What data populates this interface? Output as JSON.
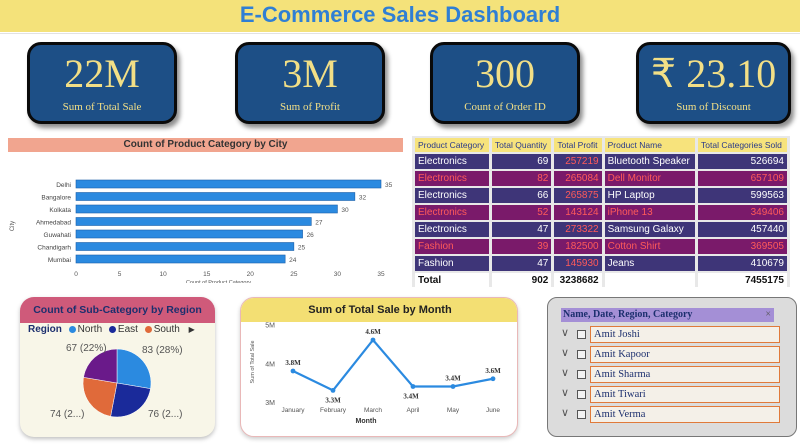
{
  "header": {
    "title": "E-Commerce Sales Dashboard"
  },
  "kpis": [
    {
      "value": "22M",
      "label": "Sum of Total Sale"
    },
    {
      "value": "3M",
      "label": "Sum of Profit"
    },
    {
      "value": "300",
      "label": "Count of Order ID"
    },
    {
      "value": "₹ 23.10",
      "label": "Sum of Discount"
    }
  ],
  "chart_data": [
    {
      "type": "bar",
      "orientation": "horizontal",
      "title": "Count of Product Category by City",
      "xlabel": "Count of Product Category",
      "ylabel": "City",
      "categories": [
        "Delhi",
        "Bangalore",
        "Kolkata",
        "Ahmedabad",
        "Guwahati",
        "Chandigarh",
        "Mumbai"
      ],
      "values": [
        35,
        32,
        30,
        27,
        26,
        25,
        24
      ],
      "xlim": [
        0,
        35
      ],
      "xticks": [
        0,
        5,
        10,
        15,
        20,
        25,
        30,
        35
      ],
      "bar_color": "#2b8ae0"
    },
    {
      "type": "pie",
      "title": "Count of Sub-Category by Region",
      "legend_title": "Region",
      "slices": [
        {
          "name": "North",
          "value": 83,
          "label": "83 (28%)",
          "color": "#2b8ae0"
        },
        {
          "name": "East",
          "value": 76,
          "label": "76 (2...)",
          "color": "#1a2a9a"
        },
        {
          "name": "South",
          "value": 74,
          "label": "74 (2...)",
          "color": "#e06a3a"
        },
        {
          "name": "",
          "value": 67,
          "label": "67 (22%)",
          "color": "#6a1a8a"
        }
      ]
    },
    {
      "type": "line",
      "title": "Sum of Total Sale by Month",
      "xlabel": "Month",
      "ylabel": "Sum of Total Sale",
      "categories": [
        "January",
        "February",
        "March",
        "April",
        "May",
        "June"
      ],
      "values": [
        3.8,
        3.3,
        4.6,
        3.4,
        3.4,
        3.6
      ],
      "data_labels": [
        "3.8M",
        "3.3M",
        "4.6M",
        "3.4M",
        "3.4M",
        "3.6M"
      ],
      "yticks": [
        "5M",
        "4M",
        "3M"
      ],
      "ylim": [
        3,
        5
      ],
      "line_color": "#2b8ae0"
    }
  ],
  "table": {
    "headers": [
      "Product Category",
      "Total Quantity",
      "Total Profit",
      "Product Name",
      "Total Categories Sold"
    ],
    "rows": [
      [
        "Electronics",
        "69",
        "257219",
        "Bluetooth Speaker",
        "526694"
      ],
      [
        "Electronics",
        "82",
        "265084",
        "Dell Monitor",
        "657109"
      ],
      [
        "Electronics",
        "66",
        "265875",
        "HP Laptop",
        "599563"
      ],
      [
        "Electronics",
        "52",
        "143124",
        "iPhone 13",
        "349406"
      ],
      [
        "Electronics",
        "47",
        "273322",
        "Samsung Galaxy",
        "457440"
      ],
      [
        "Fashion",
        "39",
        "182500",
        "Cotton Shirt",
        "369505"
      ],
      [
        "Fashion",
        "47",
        "145930",
        "Jeans",
        "410679"
      ]
    ],
    "total": [
      "Total",
      "902",
      "3238682",
      "",
      "7455175"
    ]
  },
  "pie_legend": {
    "title": "Region",
    "items": [
      "North",
      "East",
      "South"
    ],
    "colors": [
      "#2b8ae0",
      "#1a2a9a",
      "#e06a3a"
    ]
  },
  "slicer": {
    "header": "Name, Date, Region, Category",
    "items": [
      "Amit Joshi",
      "Amit Kapoor",
      "Amit Sharma",
      "Amit Tiwari",
      "Amit Verma"
    ]
  }
}
